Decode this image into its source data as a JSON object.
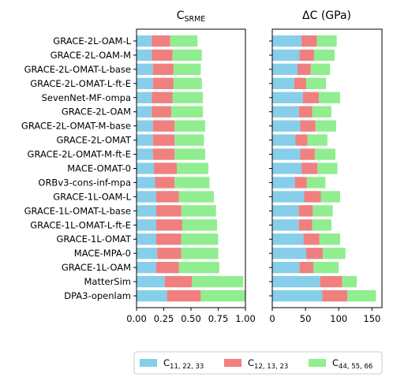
{
  "chart_data": [
    {
      "type": "bar",
      "orientation": "horizontal",
      "stacked": true,
      "title": "C_SRME",
      "title_main": "C",
      "title_sub": "SRME",
      "xlabel": "",
      "ylabel": "",
      "xlim": [
        0,
        1.0
      ],
      "xticks": [
        0.0,
        0.25,
        0.5,
        0.75,
        1.0
      ],
      "xtick_labels": [
        "0.00",
        "0.25",
        "0.50",
        "0.75",
        "1.00"
      ],
      "categories": [
        "GRACE-2L-OAM-L",
        "GRACE-2L-OAM-M",
        "GRACE-2L-OMAT-L-base",
        "GRACE-2L-OMAT-L-ft-E",
        "SevenNet-MF-ompa",
        "GRACE-2L-OAM",
        "GRACE-2L-OMAT-M-base",
        "GRACE-2L-OMAT",
        "GRACE-2L-OMAT-M-ft-E",
        "MACE-OMAT-0",
        "ORBv3-cons-inf-mpa",
        "GRACE-1L-OAM-L",
        "GRACE-1L-OMAT-L-base",
        "GRACE-1L-OMAT-L-ft-E",
        "GRACE-1L-OMAT",
        "MACE-MPA-0",
        "GRACE-1L-OAM",
        "MatterSim",
        "DPA3-openlam"
      ],
      "series": [
        {
          "name": "C11,22,33",
          "values": [
            0.14,
            0.14,
            0.15,
            0.15,
            0.14,
            0.14,
            0.15,
            0.15,
            0.15,
            0.16,
            0.17,
            0.18,
            0.18,
            0.18,
            0.18,
            0.19,
            0.18,
            0.26,
            0.28
          ]
        },
        {
          "name": "C12,13,23",
          "values": [
            0.17,
            0.19,
            0.19,
            0.19,
            0.19,
            0.18,
            0.2,
            0.2,
            0.2,
            0.21,
            0.18,
            0.21,
            0.23,
            0.24,
            0.23,
            0.22,
            0.21,
            0.25,
            0.31
          ]
        },
        {
          "name": "C44,55,66",
          "values": [
            0.25,
            0.27,
            0.25,
            0.26,
            0.28,
            0.29,
            0.28,
            0.27,
            0.28,
            0.29,
            0.32,
            0.32,
            0.32,
            0.32,
            0.34,
            0.34,
            0.37,
            0.47,
            0.41
          ]
        }
      ]
    },
    {
      "type": "bar",
      "orientation": "horizontal",
      "stacked": true,
      "title": "ΔC (GPa)",
      "xlabel": "",
      "ylabel": "",
      "xlim": [
        0,
        165
      ],
      "xticks": [
        0,
        50,
        100,
        150
      ],
      "xtick_labels": [
        "0",
        "50",
        "100",
        "150"
      ],
      "categories": [
        "GRACE-2L-OAM-L",
        "GRACE-2L-OAM-M",
        "GRACE-2L-OMAT-L-base",
        "GRACE-2L-OMAT-L-ft-E",
        "SevenNet-MF-ompa",
        "GRACE-2L-OAM",
        "GRACE-2L-OMAT-M-base",
        "GRACE-2L-OMAT",
        "GRACE-2L-OMAT-M-ft-E",
        "MACE-OMAT-0",
        "ORBv3-cons-inf-mpa",
        "GRACE-1L-OAM-L",
        "GRACE-1L-OMAT-L-base",
        "GRACE-1L-OMAT-L-ft-E",
        "GRACE-1L-OMAT",
        "MACE-MPA-0",
        "GRACE-1L-OAM",
        "MatterSim",
        "DPA3-openlam"
      ],
      "series": [
        {
          "name": "C11,22,33",
          "values": [
            44,
            41,
            38,
            33,
            46,
            40,
            42,
            35,
            42,
            44,
            34,
            48,
            40,
            40,
            47,
            51,
            41,
            72,
            75
          ]
        },
        {
          "name": "C12,13,23",
          "values": [
            23,
            22,
            20,
            18,
            24,
            20,
            23,
            18,
            22,
            24,
            18,
            25,
            21,
            20,
            24,
            25,
            21,
            33,
            38
          ]
        },
        {
          "name": "C44,55,66",
          "values": [
            30,
            31,
            29,
            30,
            32,
            29,
            31,
            30,
            31,
            30,
            28,
            29,
            30,
            29,
            31,
            34,
            38,
            22,
            43
          ]
        }
      ]
    }
  ],
  "legend": {
    "placement": "bottom-center",
    "entries": [
      {
        "main": "C",
        "sub": "11, 22, 33",
        "color": "#87ceeb"
      },
      {
        "main": "C",
        "sub": "12, 13, 23",
        "color": "#f08080"
      },
      {
        "main": "C",
        "sub": "44, 55, 66",
        "color": "#90ee90"
      }
    ]
  },
  "colors": {
    "series": [
      "#87ceeb",
      "#f08080",
      "#90ee90"
    ],
    "axis": "#000000",
    "legend_border": "#cccccc"
  }
}
